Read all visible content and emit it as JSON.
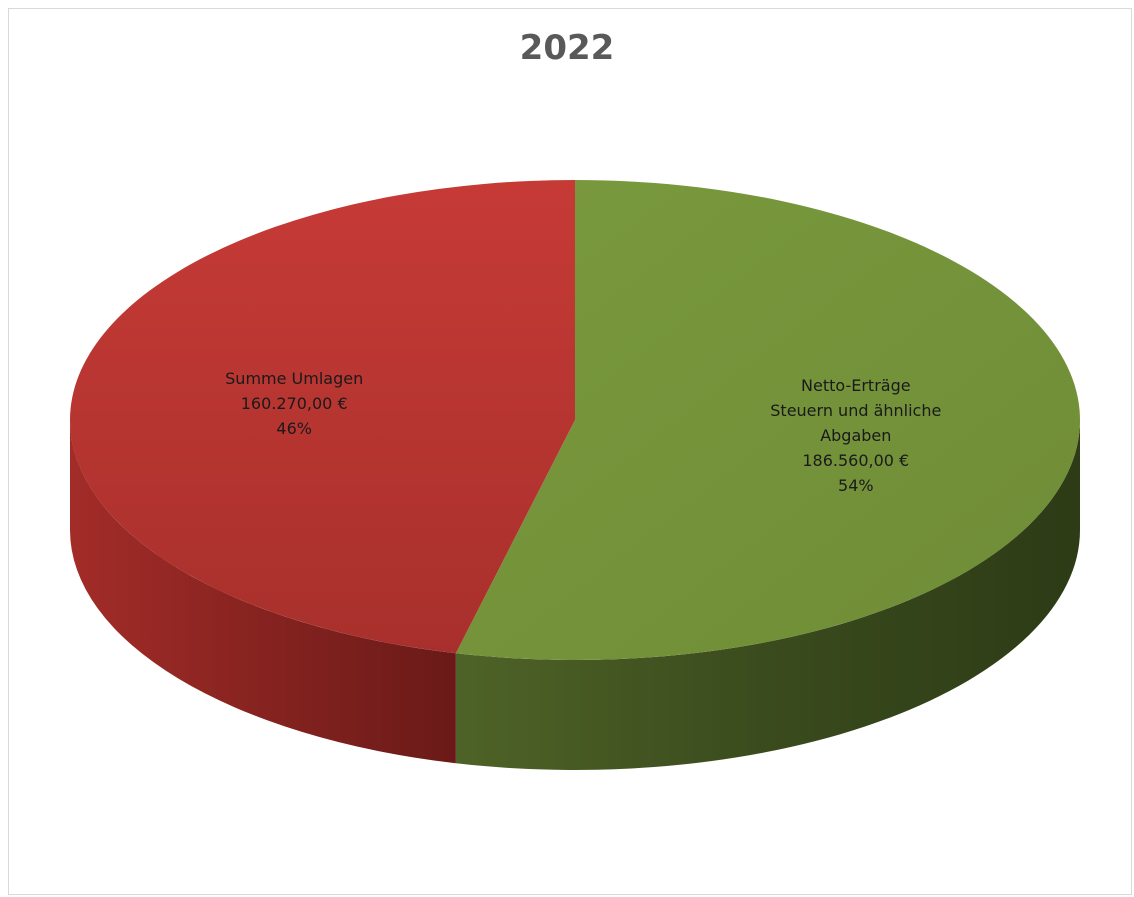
{
  "chart_data": {
    "type": "pie",
    "title": "2022",
    "three_d": true,
    "legend": "none",
    "slices": [
      {
        "name": "Netto-Erträge Steuern und ähnliche Abgaben",
        "label_lines": [
          "Netto-Erträge",
          "Steuern und ähnliche",
          "Abgaben",
          "186.560,00 €",
          "54%"
        ],
        "value": 186560.0,
        "value_text": "186.560,00 €",
        "percent": 54,
        "percent_text": "54%",
        "color": "#77933c"
      },
      {
        "name": "Summe Umlagen",
        "label_lines": [
          "Summe Umlagen",
          "160.270,00 €",
          "46%"
        ],
        "value": 160270.0,
        "value_text": "160.270,00 €",
        "percent": 46,
        "percent_text": "46%",
        "color": "#c0392b"
      }
    ]
  }
}
